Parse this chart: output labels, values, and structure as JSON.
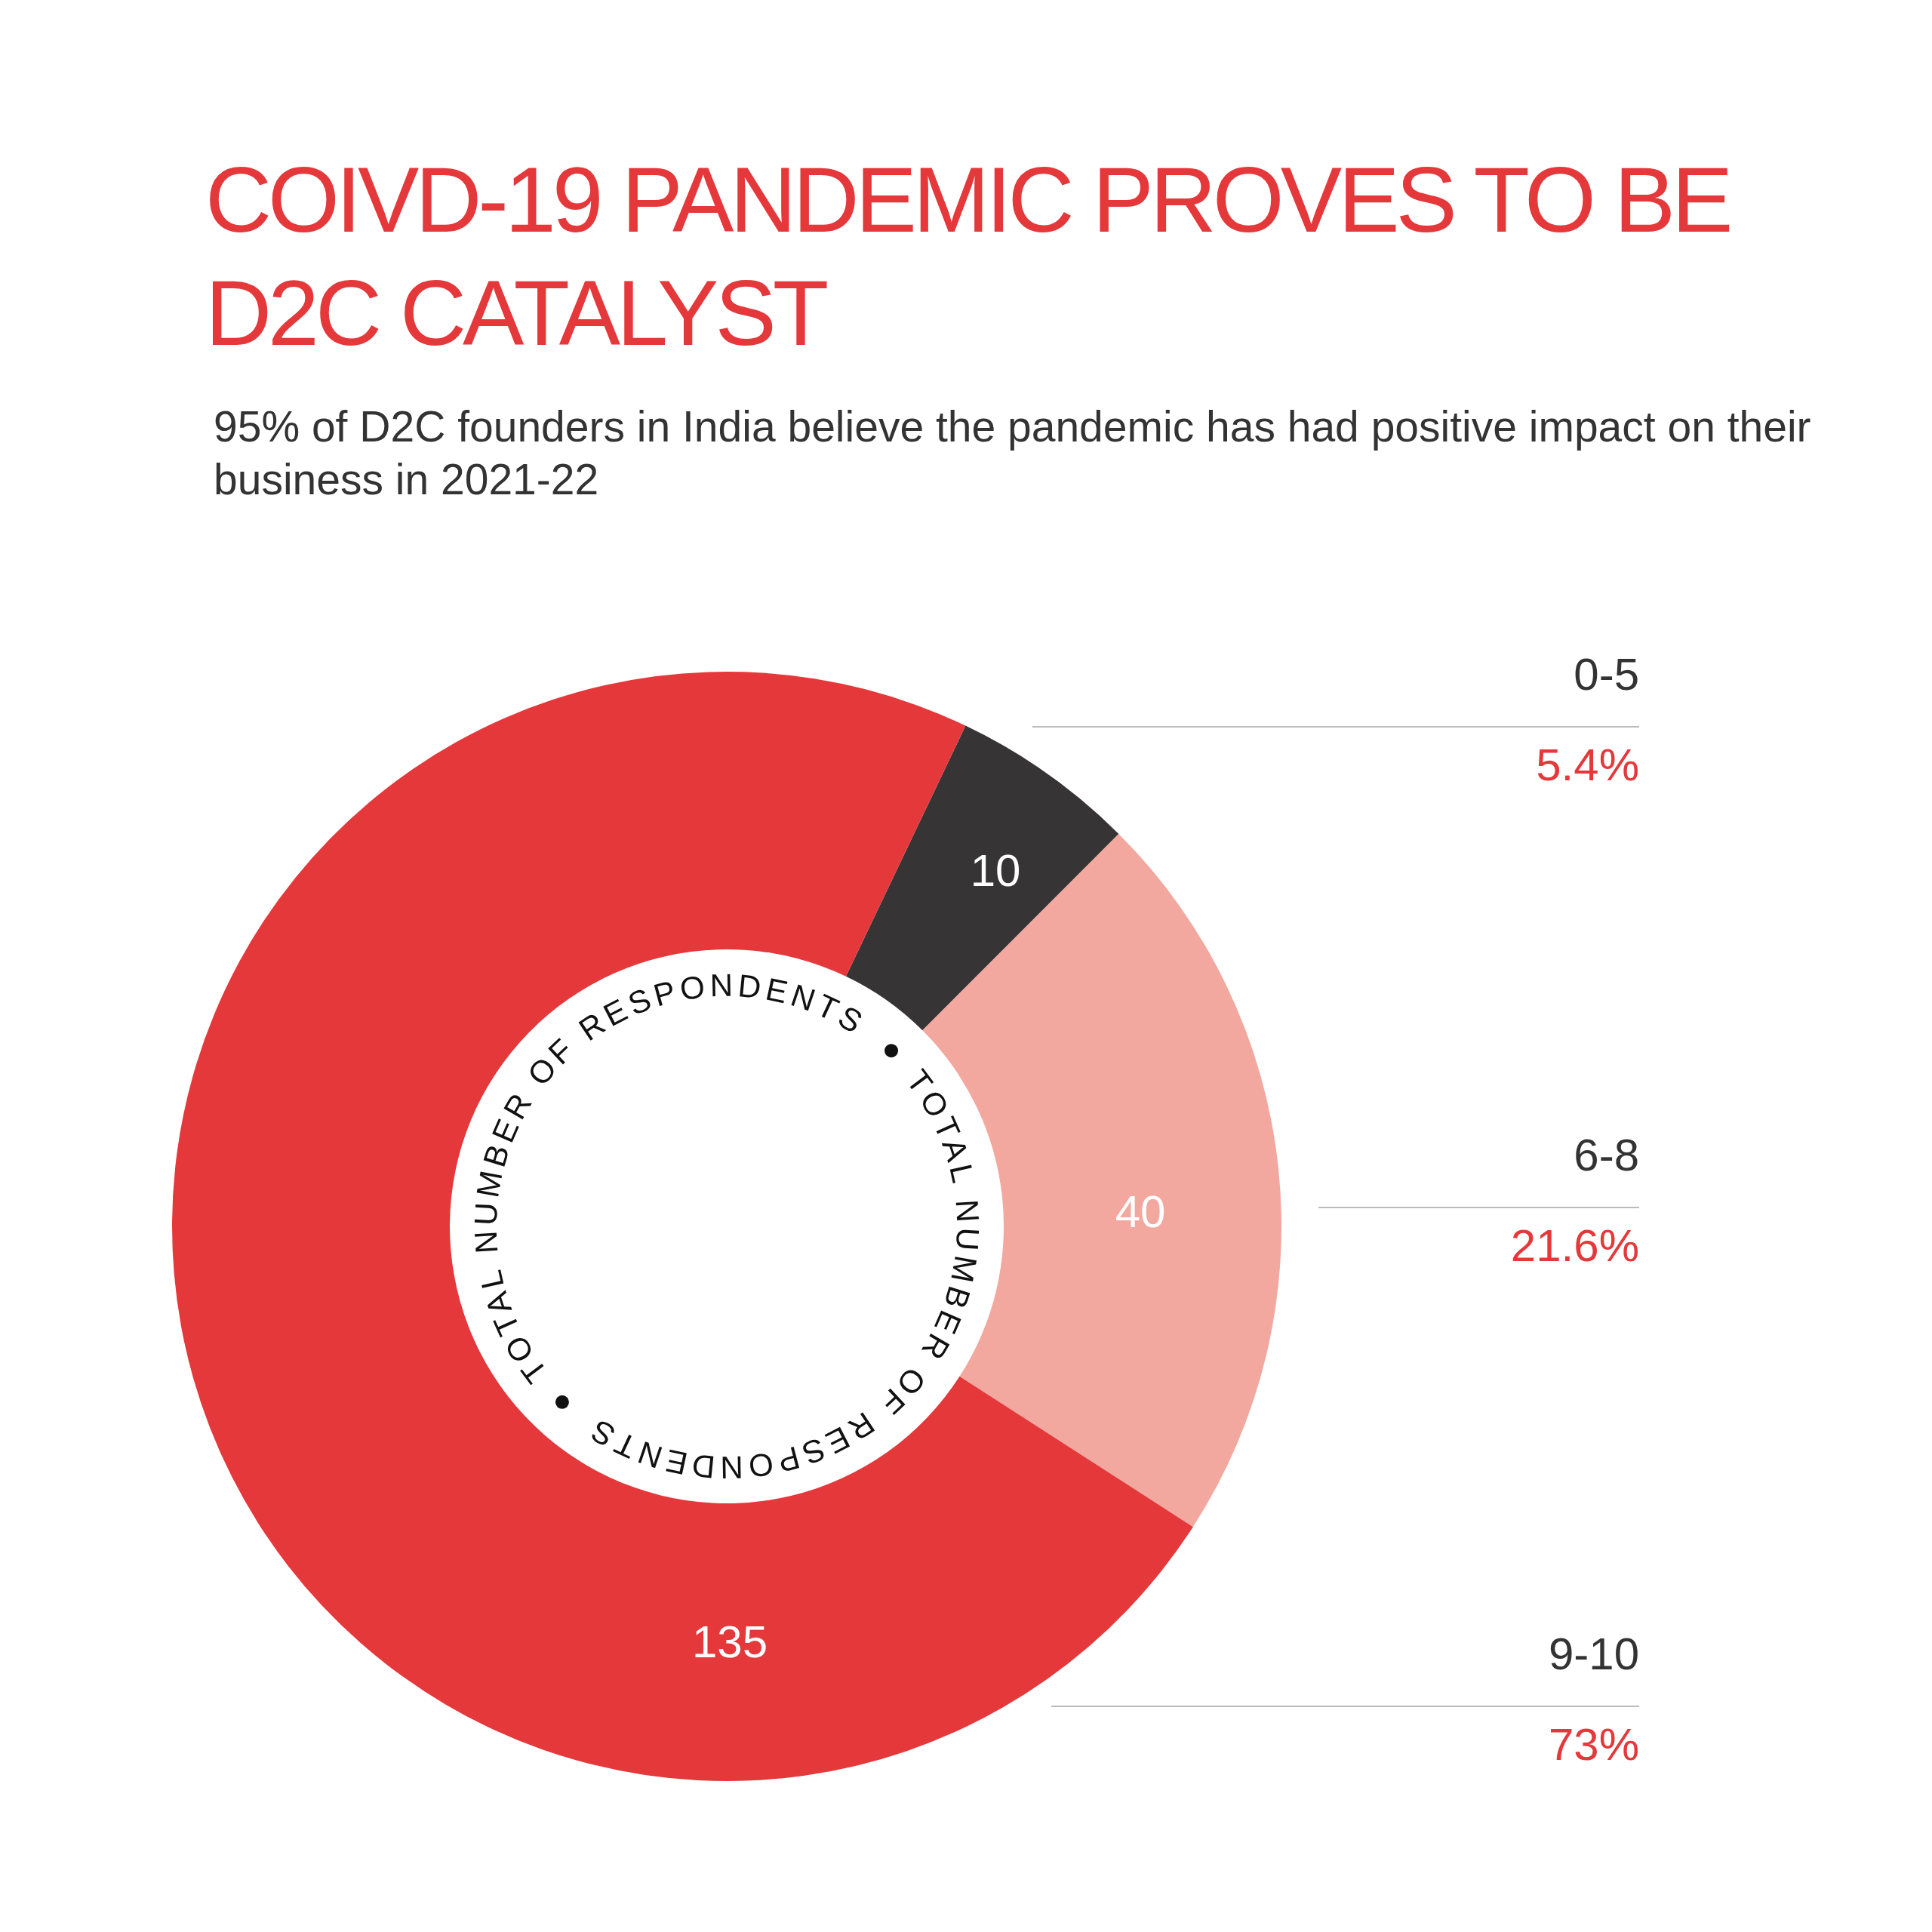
{
  "chart_data": {
    "type": "donut",
    "title": "COIVD-19 PANDEMIC PROVES TO BE D2C CATALYST",
    "subtitle": "95% of D2C founders in India believe the pandemic has had positive impact on their business in 2021-22",
    "categories": [
      "0-5",
      "6-8",
      "9-10"
    ],
    "values": [
      10,
      40,
      135
    ],
    "colors": [
      "#363435",
      "#f3a89f",
      "#e5383b"
    ],
    "data_labels": true,
    "legend": false,
    "annotations": [
      "TOTAL NUMBER OF RESPONDENTS",
      {
        "text": "5.4%",
        "x": "0-5"
      },
      {
        "text": "21.6%",
        "x": "6-8"
      },
      {
        "text": "73%",
        "x": "9-10"
      }
    ]
  }
}
